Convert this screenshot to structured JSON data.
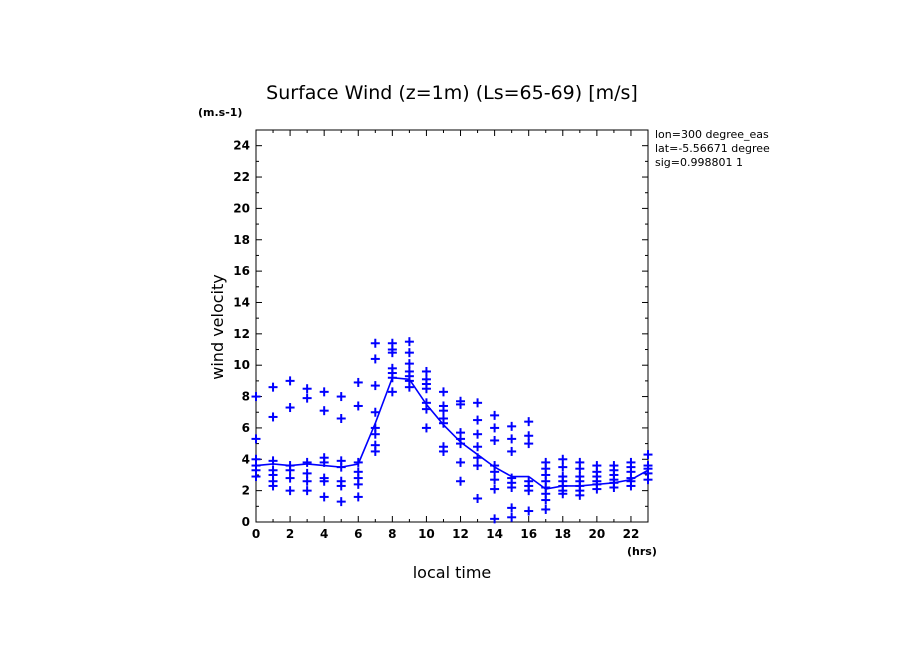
{
  "chart_data": {
    "type": "line",
    "title": "Surface Wind (z=1m) (Ls=65-69) [m/s]",
    "xlabel": "local time",
    "ylabel": "wind velocity",
    "x_unit": "(hrs)",
    "y_unit": "(m.s-1)",
    "xlim": [
      0,
      23
    ],
    "ylim": [
      0,
      25
    ],
    "x_ticks": [
      0,
      2,
      4,
      6,
      8,
      10,
      12,
      14,
      16,
      18,
      20,
      22
    ],
    "y_ticks": [
      0,
      2,
      4,
      6,
      8,
      10,
      12,
      14,
      16,
      18,
      20,
      22,
      24
    ],
    "annotations": [
      "lon=300 degree_eas",
      "lat=-5.56671 degree",
      "sig=0.998801 1"
    ],
    "grid": false,
    "color": "#0000ff",
    "series": [
      {
        "type": "line",
        "x": [
          0,
          1,
          2,
          3,
          4,
          5,
          6,
          7,
          8,
          9,
          10,
          11,
          12,
          13,
          14,
          15,
          16,
          17,
          18,
          19,
          20,
          21,
          22,
          23
        ],
        "y": [
          3.6,
          3.7,
          3.6,
          3.7,
          3.6,
          3.5,
          3.7,
          6.3,
          9.2,
          9.1,
          7.5,
          6.2,
          5.1,
          4.3,
          3.5,
          2.9,
          2.9,
          2.1,
          2.3,
          2.3,
          2.4,
          2.5,
          2.7,
          3.3
        ]
      },
      {
        "type": "scatter",
        "marker": "+",
        "points": [
          [
            0,
            8.0
          ],
          [
            0,
            5.3
          ],
          [
            0,
            4.0
          ],
          [
            0,
            3.6
          ],
          [
            0,
            3.3
          ],
          [
            0,
            2.9
          ],
          [
            1,
            8.6
          ],
          [
            1,
            6.7
          ],
          [
            1,
            3.9
          ],
          [
            1,
            3.3
          ],
          [
            1,
            3.0
          ],
          [
            1,
            2.6
          ],
          [
            1,
            2.3
          ],
          [
            2,
            9.0
          ],
          [
            2,
            7.3
          ],
          [
            2,
            3.6
          ],
          [
            2,
            3.3
          ],
          [
            2,
            2.8
          ],
          [
            2,
            2.0
          ],
          [
            3,
            8.5
          ],
          [
            3,
            7.9
          ],
          [
            3,
            3.8
          ],
          [
            3,
            3.1
          ],
          [
            3,
            2.6
          ],
          [
            3,
            2.0
          ],
          [
            4,
            8.3
          ],
          [
            4,
            7.1
          ],
          [
            4,
            4.1
          ],
          [
            4,
            3.8
          ],
          [
            4,
            2.8
          ],
          [
            4,
            2.6
          ],
          [
            4,
            1.6
          ],
          [
            5,
            8.0
          ],
          [
            5,
            6.6
          ],
          [
            5,
            3.9
          ],
          [
            5,
            3.5
          ],
          [
            5,
            2.6
          ],
          [
            5,
            2.3
          ],
          [
            5,
            1.3
          ],
          [
            6,
            8.9
          ],
          [
            6,
            7.4
          ],
          [
            6,
            3.8
          ],
          [
            6,
            3.2
          ],
          [
            6,
            2.8
          ],
          [
            6,
            2.4
          ],
          [
            6,
            1.6
          ],
          [
            7,
            11.4
          ],
          [
            7,
            10.4
          ],
          [
            7,
            8.7
          ],
          [
            7,
            7.0
          ],
          [
            7,
            6.0
          ],
          [
            7,
            5.6
          ],
          [
            7,
            4.9
          ],
          [
            7,
            4.5
          ],
          [
            8,
            11.4
          ],
          [
            8,
            11.0
          ],
          [
            8,
            10.8
          ],
          [
            8,
            9.8
          ],
          [
            8,
            9.5
          ],
          [
            8,
            9.2
          ],
          [
            8,
            8.3
          ],
          [
            9,
            11.5
          ],
          [
            9,
            10.8
          ],
          [
            9,
            10.1
          ],
          [
            9,
            9.6
          ],
          [
            9,
            9.3
          ],
          [
            9,
            9.0
          ],
          [
            9,
            8.6
          ],
          [
            10,
            9.6
          ],
          [
            10,
            9.1
          ],
          [
            10,
            8.8
          ],
          [
            10,
            8.5
          ],
          [
            10,
            7.6
          ],
          [
            10,
            7.2
          ],
          [
            10,
            6.0
          ],
          [
            11,
            8.3
          ],
          [
            11,
            7.4
          ],
          [
            11,
            7.1
          ],
          [
            11,
            6.6
          ],
          [
            11,
            6.3
          ],
          [
            11,
            4.8
          ],
          [
            11,
            4.5
          ],
          [
            12,
            7.7
          ],
          [
            12,
            7.5
          ],
          [
            12,
            5.7
          ],
          [
            12,
            5.3
          ],
          [
            12,
            5.0
          ],
          [
            12,
            3.8
          ],
          [
            12,
            2.6
          ],
          [
            13,
            7.6
          ],
          [
            13,
            6.5
          ],
          [
            13,
            5.6
          ],
          [
            13,
            4.8
          ],
          [
            13,
            4.1
          ],
          [
            13,
            3.6
          ],
          [
            13,
            1.5
          ],
          [
            14,
            6.8
          ],
          [
            14,
            6.0
          ],
          [
            14,
            5.2
          ],
          [
            14,
            3.6
          ],
          [
            14,
            3.2
          ],
          [
            14,
            2.7
          ],
          [
            14,
            2.1
          ],
          [
            14,
            0.2
          ],
          [
            15,
            6.1
          ],
          [
            15,
            5.3
          ],
          [
            15,
            4.5
          ],
          [
            15,
            2.8
          ],
          [
            15,
            2.5
          ],
          [
            15,
            2.2
          ],
          [
            15,
            0.9
          ],
          [
            15,
            0.3
          ],
          [
            16,
            6.4
          ],
          [
            16,
            5.5
          ],
          [
            16,
            5.0
          ],
          [
            16,
            2.6
          ],
          [
            16,
            2.3
          ],
          [
            16,
            2.0
          ],
          [
            16,
            0.7
          ],
          [
            17,
            3.8
          ],
          [
            17,
            3.4
          ],
          [
            17,
            3.0
          ],
          [
            17,
            2.6
          ],
          [
            17,
            2.2
          ],
          [
            17,
            1.8
          ],
          [
            17,
            1.4
          ],
          [
            17,
            0.8
          ],
          [
            18,
            4.0
          ],
          [
            18,
            3.5
          ],
          [
            18,
            2.9
          ],
          [
            18,
            2.6
          ],
          [
            18,
            2.3
          ],
          [
            18,
            2.0
          ],
          [
            18,
            1.8
          ],
          [
            19,
            3.8
          ],
          [
            19,
            3.4
          ],
          [
            19,
            2.9
          ],
          [
            19,
            2.6
          ],
          [
            19,
            2.3
          ],
          [
            19,
            2.0
          ],
          [
            19,
            1.7
          ],
          [
            20,
            3.6
          ],
          [
            20,
            3.2
          ],
          [
            20,
            2.9
          ],
          [
            20,
            2.6
          ],
          [
            20,
            2.4
          ],
          [
            20,
            2.1
          ],
          [
            21,
            3.6
          ],
          [
            21,
            3.3
          ],
          [
            21,
            3.0
          ],
          [
            21,
            2.7
          ],
          [
            21,
            2.5
          ],
          [
            21,
            2.2
          ],
          [
            22,
            3.8
          ],
          [
            22,
            3.5
          ],
          [
            22,
            3.2
          ],
          [
            22,
            2.8
          ],
          [
            22,
            2.6
          ],
          [
            22,
            2.3
          ],
          [
            23,
            4.3
          ],
          [
            23,
            3.6
          ],
          [
            23,
            3.4
          ],
          [
            23,
            3.1
          ],
          [
            23,
            2.7
          ]
        ]
      }
    ]
  }
}
